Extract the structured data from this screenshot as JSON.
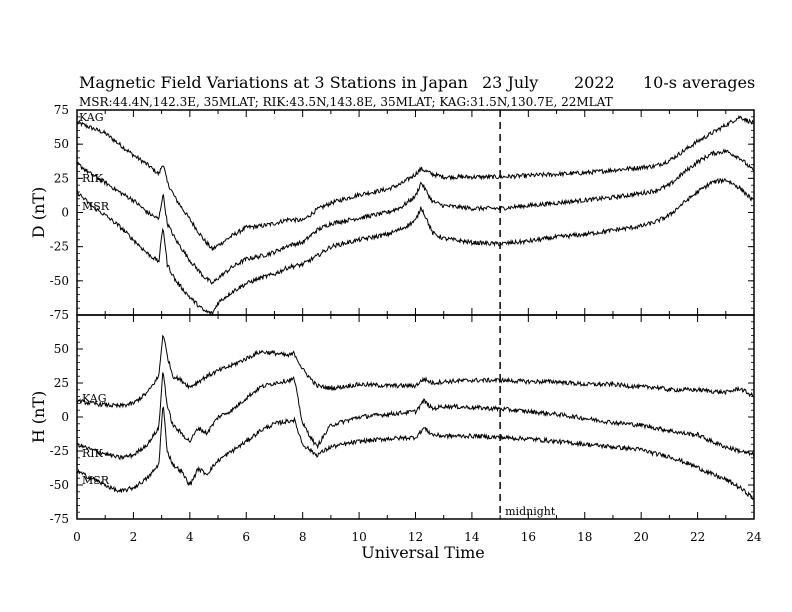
{
  "chart_data": {
    "type": "line",
    "title": "Magnetic Field Variations at 3 Stations in Japan",
    "date": "23 July",
    "year": "2022",
    "averaging": "10-s averages",
    "subtitle": "MSR:44.4N,142.3E, 35MLAT;  RIK:43.5N,143.8E, 35MLAT;  KAG:31.5N,130.7E, 22MLAT",
    "xlabel": "Universal Time",
    "xlim": [
      0,
      24
    ],
    "xticks": [
      "0",
      "2",
      "4",
      "6",
      "8",
      "10",
      "12",
      "14",
      "16",
      "18",
      "20",
      "22",
      "24"
    ],
    "midnight_ut": 15,
    "midnight_label": "midnight",
    "panels": [
      {
        "ylabel": "D (nT)",
        "ylim": [
          -75,
          75
        ],
        "yticks": [
          "-75",
          "-50",
          "-25",
          "0",
          "25",
          "50",
          "75"
        ],
        "series": [
          {
            "name": "KAG",
            "x": [
              0,
              0.5,
              1,
              1.5,
              2,
              2.5,
              2.9,
              3.05,
              3.2,
              3.5,
              4,
              4.5,
              4.8,
              5,
              5.5,
              6,
              6.5,
              7,
              7.5,
              8,
              8.5,
              9,
              10,
              11,
              11.5,
              12,
              12.2,
              12.4,
              12.6,
              13,
              14,
              15,
              16,
              17,
              18,
              19,
              20,
              20.5,
              21,
              21.5,
              22,
              22.5,
              23,
              23.5,
              24
            ],
            "y": [
              66,
              62,
              58,
              50,
              42,
              35,
              28,
              36,
              22,
              10,
              -5,
              -20,
              -27,
              -24,
              -17,
              -11,
              -10,
              -8,
              -5,
              -6,
              2,
              7,
              13,
              17,
              21,
              28,
              32,
              30,
              28,
              26,
              26,
              26,
              27,
              28,
              29,
              31,
              33,
              34,
              38,
              45,
              52,
              58,
              64,
              70,
              65
            ]
          },
          {
            "name": "RIK",
            "x": [
              0,
              0.5,
              1,
              1.5,
              2,
              2.5,
              2.9,
              3.05,
              3.2,
              3.5,
              4,
              4.5,
              4.8,
              5,
              5.5,
              6,
              6.5,
              7,
              7.5,
              8,
              8.5,
              9,
              10,
              11,
              11.5,
              12,
              12.2,
              12.4,
              12.6,
              13,
              14,
              15,
              16,
              17,
              18,
              19,
              20,
              20.5,
              21,
              21.5,
              22,
              22.5,
              23,
              23.5,
              24
            ],
            "y": [
              36,
              28,
              22,
              15,
              9,
              0,
              -5,
              14,
              -8,
              -20,
              -35,
              -47,
              -52,
              -48,
              -40,
              -34,
              -32,
              -29,
              -24,
              -22,
              -13,
              -8,
              -4,
              0,
              4,
              12,
              22,
              15,
              8,
              5,
              3,
              3,
              5,
              7,
              9,
              11,
              14,
              16,
              20,
              29,
              37,
              43,
              45,
              40,
              30
            ]
          },
          {
            "name": "MSR",
            "x": [
              0,
              0.5,
              1,
              1.5,
              2,
              2.5,
              2.9,
              3.05,
              3.2,
              3.5,
              4,
              4.5,
              4.8,
              5,
              5.5,
              6,
              6.5,
              7,
              7.5,
              8,
              8.5,
              9,
              10,
              11,
              11.5,
              12,
              12.2,
              12.4,
              12.6,
              13,
              14,
              15,
              16,
              17,
              18,
              19,
              20,
              20.5,
              21,
              21.5,
              22,
              22.5,
              23,
              23.5,
              24
            ],
            "y": [
              15,
              5,
              -2,
              -10,
              -20,
              -30,
              -36,
              -10,
              -38,
              -50,
              -62,
              -72,
              -74,
              -66,
              -58,
              -52,
              -48,
              -45,
              -40,
              -38,
              -32,
              -25,
              -20,
              -16,
              -12,
              -6,
              4,
              -5,
              -15,
              -19,
              -22,
              -23,
              -21,
              -18,
              -16,
              -13,
              -10,
              -7,
              -2,
              7,
              15,
              22,
              24,
              18,
              8
            ]
          }
        ]
      },
      {
        "ylabel": "H (nT)",
        "ylim": [
          -75,
          75
        ],
        "yticks": [
          "-75",
          "-50",
          "-25",
          "0",
          "25",
          "50",
          "75"
        ],
        "series": [
          {
            "name": "KAG",
            "x": [
              0,
              0.5,
              1,
              1.5,
              2,
              2.5,
              2.9,
              3.05,
              3.2,
              3.4,
              3.7,
              4,
              4.3,
              4.6,
              5,
              5.5,
              6,
              6.5,
              7,
              7.5,
              7.7,
              8,
              8.5,
              9,
              10,
              11,
              12,
              12.3,
              12.6,
              13,
              14,
              15,
              16,
              17,
              18,
              19,
              20,
              20.5,
              21,
              21.5,
              22,
              22.5,
              23,
              23.5,
              24
            ],
            "y": [
              12,
              10,
              9,
              8,
              10,
              18,
              30,
              62,
              45,
              30,
              27,
              22,
              26,
              30,
              34,
              38,
              43,
              48,
              47,
              45,
              47,
              35,
              23,
              21,
              24,
              23,
              23,
              28,
              25,
              26,
              27,
              27,
              26,
              26,
              24,
              24,
              22,
              22,
              20,
              20,
              20,
              19,
              18,
              21,
              15
            ]
          },
          {
            "name": "RIK",
            "x": [
              0,
              0.5,
              1,
              1.5,
              2,
              2.5,
              2.9,
              3.05,
              3.2,
              3.4,
              3.7,
              4,
              4.3,
              4.6,
              5,
              5.5,
              6,
              6.5,
              7,
              7.5,
              7.7,
              8,
              8.5,
              9,
              10,
              11,
              12,
              12.3,
              12.6,
              13,
              14,
              15,
              16,
              17,
              18,
              19,
              20,
              20.5,
              21,
              21.5,
              22,
              22.5,
              23,
              23.5,
              24
            ],
            "y": [
              -20,
              -24,
              -27,
              -30,
              -28,
              -20,
              -8,
              35,
              8,
              -6,
              -12,
              -18,
              -8,
              -12,
              0,
              5,
              14,
              22,
              25,
              27,
              28,
              -5,
              -22,
              -6,
              0,
              2,
              4,
              12,
              6,
              8,
              7,
              6,
              4,
              2,
              -1,
              -4,
              -6,
              -8,
              -10,
              -12,
              -13,
              -18,
              -22,
              -25,
              -28
            ]
          },
          {
            "name": "MSR",
            "x": [
              0,
              0.5,
              1,
              1.5,
              2,
              2.5,
              2.9,
              3.05,
              3.2,
              3.4,
              3.7,
              4,
              4.3,
              4.6,
              5,
              5.5,
              6,
              6.5,
              7,
              7.5,
              7.7,
              8,
              8.5,
              9,
              10,
              11,
              12,
              12.3,
              12.6,
              13,
              14,
              15,
              16,
              17,
              18,
              19,
              20,
              20.5,
              21,
              21.5,
              22,
              22.5,
              23,
              23.5,
              24
            ],
            "y": [
              -40,
              -45,
              -50,
              -55,
              -52,
              -45,
              -35,
              10,
              -25,
              -35,
              -40,
              -50,
              -38,
              -42,
              -32,
              -25,
              -18,
              -10,
              -5,
              -3,
              -2,
              -20,
              -28,
              -22,
              -18,
              -16,
              -15,
              -8,
              -13,
              -14,
              -14,
              -15,
              -16,
              -18,
              -20,
              -22,
              -24,
              -27,
              -29,
              -33,
              -37,
              -42,
              -46,
              -52,
              -60
            ]
          }
        ]
      }
    ]
  }
}
